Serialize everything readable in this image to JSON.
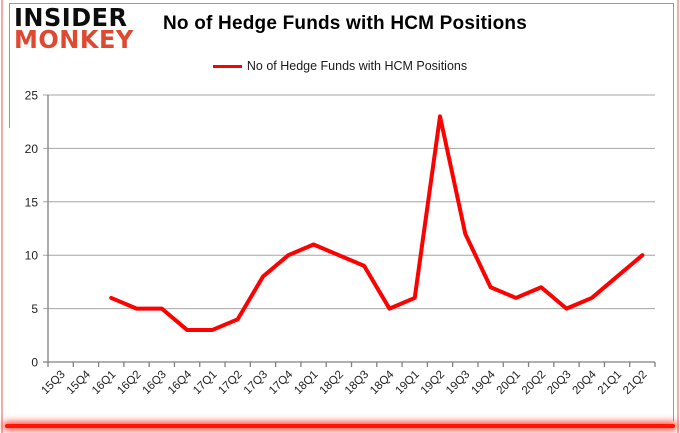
{
  "brand": {
    "line1": "INSIDER",
    "line2": "MONKEY"
  },
  "title": "No of Hedge Funds with HCM Positions",
  "legend": {
    "label": "No of Hedge Funds with HCM Positions"
  },
  "chart_data": {
    "type": "line",
    "title": "No of Hedge Funds with HCM Positions",
    "categories": [
      "15Q3",
      "15Q4",
      "16Q1",
      "16Q2",
      "16Q3",
      "16Q4",
      "17Q1",
      "17Q2",
      "17Q3",
      "17Q4",
      "18Q1",
      "18Q2",
      "18Q3",
      "18Q4",
      "19Q1",
      "19Q2",
      "19Q3",
      "19Q4",
      "20Q1",
      "20Q2",
      "20Q3",
      "20Q4",
      "21Q1",
      "21Q2"
    ],
    "series": [
      {
        "name": "No of Hedge Funds with HCM Positions",
        "color": "#fe0000",
        "values": [
          null,
          null,
          6,
          5,
          5,
          3,
          3,
          4,
          8,
          10,
          11,
          10,
          9,
          5,
          6,
          23,
          12,
          7,
          6,
          7,
          5,
          6,
          8,
          10
        ]
      }
    ],
    "xlabel": "",
    "ylabel": "",
    "ylim": [
      0,
      25
    ],
    "yticks": [
      0,
      5,
      10,
      15,
      20,
      25
    ],
    "grid": "horizontal",
    "legend_position": "top-center"
  },
  "colors": {
    "line": "#fe0000",
    "grid": "#a6a6a6",
    "axis": "#808080",
    "tick_text": "#1f1f1f",
    "brand_black": "#0d0d0d",
    "brand_red": "#dd4a31",
    "side_border_pink": "#f2aca9",
    "bottom_glow_red": "#ff1505"
  }
}
